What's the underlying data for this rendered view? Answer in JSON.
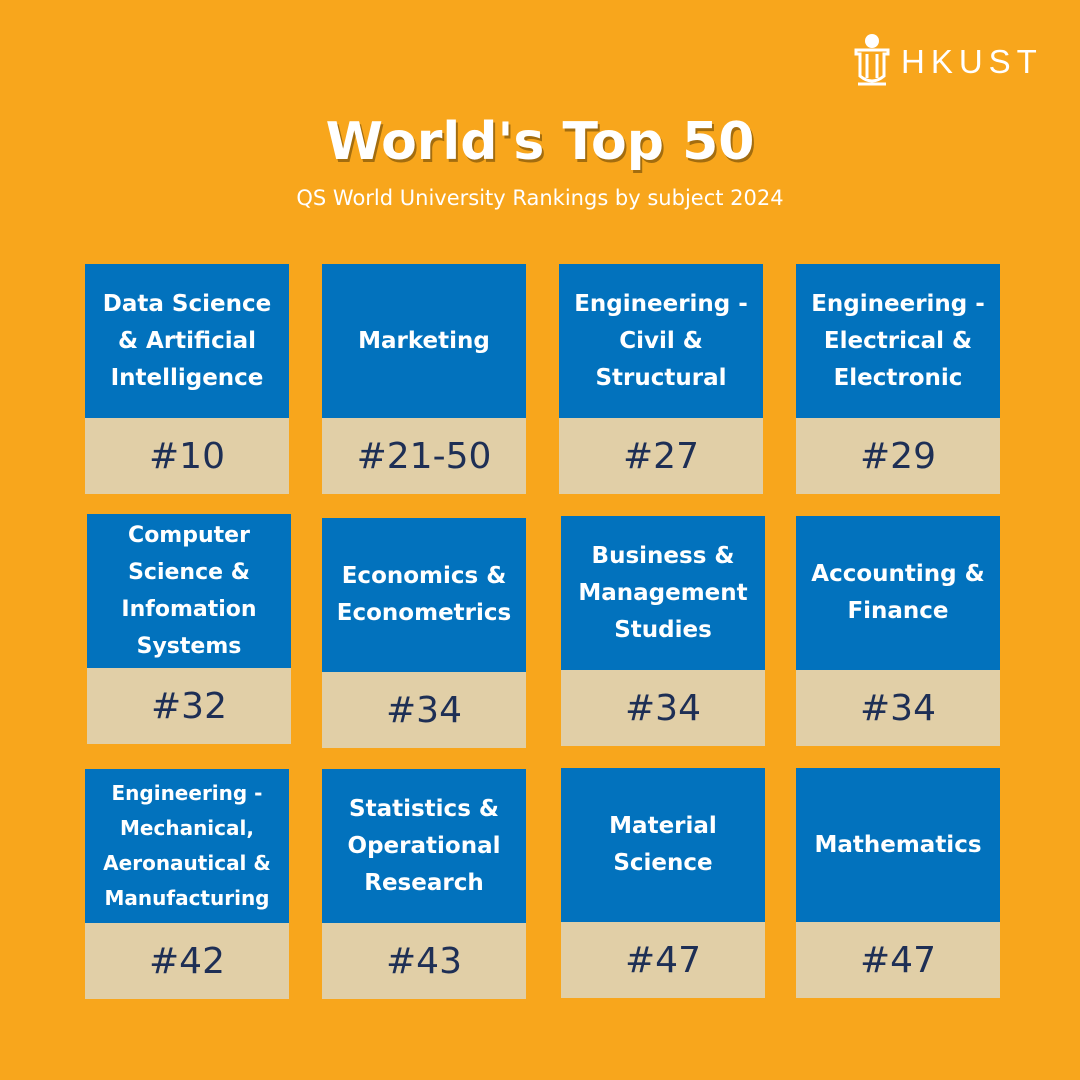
{
  "brand": {
    "name": "HKUST",
    "logo_icon": "hkust-emblem-icon"
  },
  "header": {
    "title": "World's Top 50",
    "subtitle": "QS World University Rankings by subject 2024"
  },
  "colors": {
    "background": "#F8A61C",
    "subject_panel": "#0272BD",
    "rank_panel": "#E1CFA7",
    "rank_text": "#1E2F55"
  },
  "rankings": [
    {
      "subject": "Data Science\n& Artificial\nIntelligence",
      "rank": "#10"
    },
    {
      "subject": "Marketing",
      "rank": "#21-50"
    },
    {
      "subject": "Engineering -\nCivil &\nStructural",
      "rank": "#27"
    },
    {
      "subject": "Engineering -\nElectrical &\nElectronic",
      "rank": "#29"
    },
    {
      "subject": "Computer\nScience &\nInfomation\nSystems",
      "rank": "#32"
    },
    {
      "subject": "Economics &\nEconometrics",
      "rank": "#34"
    },
    {
      "subject": "Business &\nManagement\nStudies",
      "rank": "#34"
    },
    {
      "subject": "Accounting &\nFinance",
      "rank": "#34"
    },
    {
      "subject": "Engineering -\nMechanical,\nAeronautical &\nManufacturing",
      "rank": "#42"
    },
    {
      "subject": "Statistics &\nOperational\nResearch",
      "rank": "#43"
    },
    {
      "subject": "Material\nScience",
      "rank": "#47"
    },
    {
      "subject": "Mathematics",
      "rank": "#47"
    }
  ]
}
